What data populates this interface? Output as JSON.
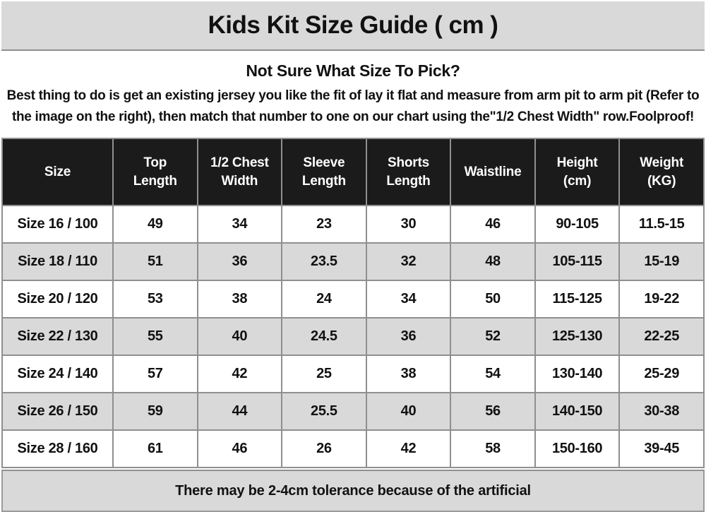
{
  "page": {
    "title": "Kids Kit Size Guide ( cm )",
    "intro_heading": "Not Sure What Size To Pick?",
    "intro_body": "Best thing to do is get an existing jersey you like the fit of lay it flat and measure from arm pit to arm pit (Refer to the image on the right), then match that number to one on our chart using the\"1/2 Chest Width\" row.Foolproof!",
    "footer_note": "There may be 2-4cm tolerance because of the artificial"
  },
  "colors": {
    "band_bg": "#d9d9d9",
    "table_header_bg": "#1b1b1b",
    "table_header_text": "#ffffff",
    "row_alt_bg": "#d9d9d9",
    "grid_line": "#8f8f8f",
    "text": "#111111"
  },
  "chart_data": {
    "type": "table",
    "title": "Kids Kit Size Guide ( cm )",
    "columns": [
      "Size",
      "Top Length",
      "1/2 Chest Width",
      "Sleeve Length",
      "Shorts Length",
      "Waistline",
      "Height (cm)",
      "Weight (KG)"
    ],
    "rows": [
      [
        "Size 16 / 100",
        "49",
        "34",
        "23",
        "30",
        "46",
        "90-105",
        "11.5-15"
      ],
      [
        "Size 18 / 110",
        "51",
        "36",
        "23.5",
        "32",
        "48",
        "105-115",
        "15-19"
      ],
      [
        "Size 20 / 120",
        "53",
        "38",
        "24",
        "34",
        "50",
        "115-125",
        "19-22"
      ],
      [
        "Size 22 / 130",
        "55",
        "40",
        "24.5",
        "36",
        "52",
        "125-130",
        "22-25"
      ],
      [
        "Size 24 / 140",
        "57",
        "42",
        "25",
        "38",
        "54",
        "130-140",
        "25-29"
      ],
      [
        "Size 26 / 150",
        "59",
        "44",
        "25.5",
        "40",
        "56",
        "140-150",
        "30-38"
      ],
      [
        "Size 28 / 160",
        "61",
        "46",
        "26",
        "42",
        "58",
        "150-160",
        "39-45"
      ]
    ],
    "footnote": "There may be 2-4cm tolerance because of the artificial",
    "layout": "striped rows, black header row, grey title and footer bands"
  }
}
